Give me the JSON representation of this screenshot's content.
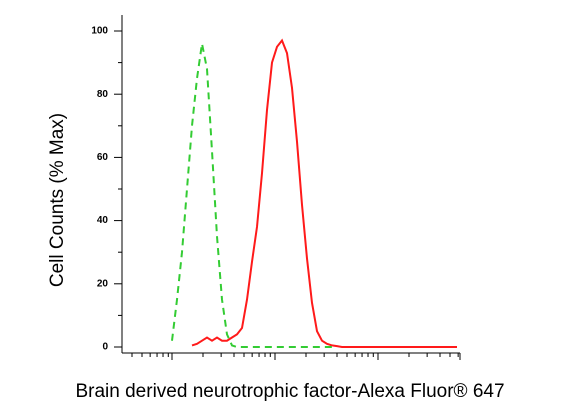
{
  "chart_data": {
    "type": "line",
    "x_label": "Brain derived neurotrophic factor-Alexa Fluor® 647",
    "y_label": "Cell Counts (% Max)",
    "categories": [
      null,
      null,
      null,
      null,
      null,
      null,
      null,
      null,
      null,
      null,
      null,
      null,
      null,
      null,
      null,
      null,
      null,
      null,
      null,
      null,
      null,
      null,
      null,
      null,
      null,
      null,
      null,
      null,
      null,
      null,
      null,
      null,
      null,
      null,
      null,
      null,
      null,
      null,
      null,
      null,
      null,
      null,
      null,
      null,
      null,
      null,
      null,
      null,
      null,
      null,
      null,
      null,
      null,
      null,
      null,
      null,
      null,
      null,
      null,
      null,
      null,
      null,
      null,
      null,
      null,
      null,
      null,
      null
    ],
    "series": [
      {
        "color": "#ff1a1a",
        "dash": false,
        "values": [
          null,
          null,
          null,
          null,
          null,
          null,
          null,
          null,
          null,
          null,
          null,
          null,
          null,
          null,
          0.5,
          1,
          2,
          3,
          2,
          3,
          2,
          2,
          3,
          4,
          6,
          15,
          27,
          38,
          55,
          75,
          90,
          95,
          97,
          93,
          82,
          65,
          45,
          28,
          14,
          5,
          2,
          1,
          0.5,
          0.3,
          0,
          0,
          0,
          0,
          0,
          0,
          0,
          0,
          0,
          0,
          0,
          0,
          0,
          0,
          0,
          0,
          0,
          0,
          0,
          0,
          0,
          0,
          0,
          0
        ]
      },
      {
        "color": "#33cc33",
        "dash": true,
        "values": [
          null,
          null,
          null,
          null,
          null,
          null,
          null,
          null,
          null,
          null,
          2,
          15,
          30,
          50,
          70,
          85,
          96,
          88,
          62,
          35,
          15,
          4,
          0.5,
          0,
          0,
          0,
          0,
          0,
          0,
          0,
          0,
          0,
          0,
          0,
          0,
          0,
          0,
          0,
          0,
          0,
          0,
          0,
          0,
          null,
          null,
          null,
          null,
          null,
          null,
          null,
          null,
          null,
          null,
          null,
          null,
          null,
          null,
          null,
          null,
          null,
          null,
          null,
          null,
          null,
          null,
          null,
          null,
          null
        ]
      }
    ],
    "ylim": [
      0,
      100
    ],
    "yticks": [
      0,
      20,
      40,
      60,
      80,
      100
    ]
  }
}
